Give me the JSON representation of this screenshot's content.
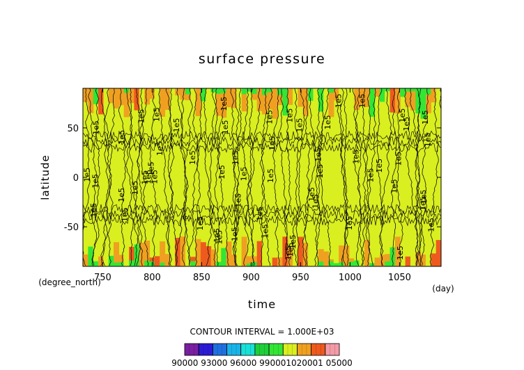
{
  "chart_data": {
    "type": "heatmap",
    "title": "surface pressure",
    "xlabel": "time",
    "ylabel": "latitude",
    "x_unit": "(day)",
    "y_unit": "(degree_north)",
    "xlim": [
      730,
      1092
    ],
    "ylim": [
      -90,
      90
    ],
    "x_ticks": [
      750,
      800,
      850,
      900,
      950,
      1000,
      1050
    ],
    "y_ticks": [
      -50,
      0,
      50
    ],
    "contour_interval_text": "CONTOUR INTERVAL = 1.000E+03",
    "contour_label": "1e5",
    "colorbar": {
      "levels": [
        90000,
        91500,
        93000,
        94500,
        96000,
        97500,
        99000,
        100500,
        102000,
        103500,
        105000
      ],
      "colors": [
        "#7a1fa2",
        "#2b1bd6",
        "#1f6fe0",
        "#19b3e8",
        "#19e0d8",
        "#1ecf3a",
        "#33e633",
        "#d9ef1f",
        "#f0a020",
        "#ee5a1e",
        "#f49aa6"
      ],
      "label_values": [
        90000,
        93000,
        96000,
        99000,
        102000,
        105000
      ],
      "label_text": "90000 93000 96000 990001020001 05000"
    }
  }
}
